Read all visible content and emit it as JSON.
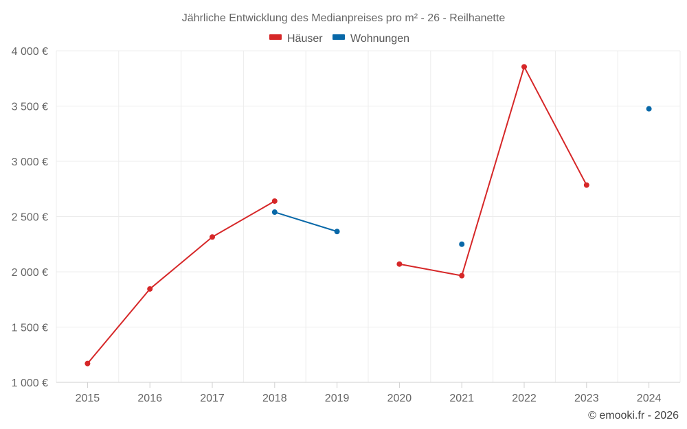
{
  "chart_data": {
    "type": "line",
    "title": "Jährliche Entwicklung des Medianpreises pro m² - 26 - Reilhanette",
    "xlabel": "",
    "ylabel": "",
    "categories": [
      "2015",
      "2016",
      "2017",
      "2018",
      "2019",
      "2020",
      "2021",
      "2022",
      "2023",
      "2024"
    ],
    "ylim": [
      1000,
      4000
    ],
    "yticks": [
      1000,
      1500,
      2000,
      2500,
      3000,
      3500,
      4000
    ],
    "ytick_labels": [
      "1 000 €",
      "1 500 €",
      "2 000 €",
      "2 500 €",
      "3 000 €",
      "3 500 €",
      "4 000 €"
    ],
    "grid": true,
    "legend_position": "top-center",
    "series": [
      {
        "name": "Häuser",
        "color": "#d62728",
        "values": [
          1170,
          1845,
          2315,
          2640,
          null,
          2070,
          1965,
          3855,
          2785,
          null
        ]
      },
      {
        "name": "Wohnungen",
        "color": "#0868a8",
        "values": [
          null,
          null,
          null,
          2540,
          2365,
          null,
          2250,
          null,
          null,
          3475
        ]
      }
    ]
  },
  "credit": "© emooki.fr - 2026"
}
